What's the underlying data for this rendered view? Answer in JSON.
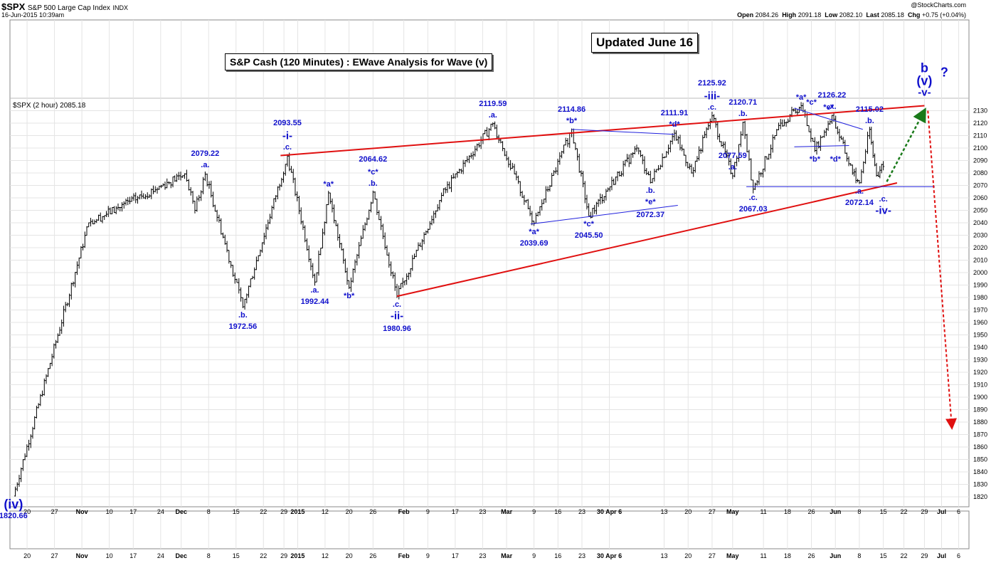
{
  "header": {
    "symbol": "$SPX",
    "name": "S&P 500 Large Cap Index",
    "exchange": "INDX",
    "datetime": "16-Jun-2015 10:39am",
    "brand": "@StockCharts.com",
    "open_label": "Open",
    "open": "2084.26",
    "high_label": "High",
    "high": "2091.18",
    "low_label": "Low",
    "low": "2082.10",
    "last_label": "Last",
    "last": "2085.18",
    "chg_label": "Chg",
    "chg": "+0.75 (+0.04%)"
  },
  "legend_text": "$SPX (2 hour) 2085.18",
  "title_box": "S&P Cash (120 Minutes) : EWave Analysis for Wave (v)",
  "updated_box": "Updated June 16",
  "colors": {
    "wave_label": "#1010cc",
    "channel": "#e01010",
    "blue_line": "#2020dd",
    "projection_up": "#1a7a1a",
    "projection_down": "#e01010",
    "grid": "#e4e4e4",
    "bars": "#000000"
  },
  "chart_data": {
    "type": "ohlc",
    "title": "S&P Cash (120 Minutes) : EWave Analysis for Wave (v)",
    "ylim": [
      1812,
      2140
    ],
    "y_ticks": [
      1820,
      1830,
      1840,
      1850,
      1860,
      1870,
      1880,
      1890,
      1900,
      1910,
      1920,
      1930,
      1940,
      1950,
      1960,
      1970,
      1980,
      1990,
      2000,
      2010,
      2020,
      2030,
      2040,
      2050,
      2060,
      2070,
      2080,
      2090,
      2100,
      2110,
      2120,
      2130
    ],
    "x_domain": [
      0,
      265
    ],
    "x_ticks": [
      {
        "t": 4,
        "label": "20"
      },
      {
        "t": 12,
        "label": "27"
      },
      {
        "t": 20,
        "label": "Nov"
      },
      {
        "t": 28,
        "label": "10"
      },
      {
        "t": 35,
        "label": "17"
      },
      {
        "t": 43,
        "label": "24"
      },
      {
        "t": 49,
        "label": "Dec"
      },
      {
        "t": 57,
        "label": "8"
      },
      {
        "t": 65,
        "label": "15"
      },
      {
        "t": 73,
        "label": "22"
      },
      {
        "t": 79,
        "label": "29"
      },
      {
        "t": 83,
        "label": "2015"
      },
      {
        "t": 91,
        "label": "12"
      },
      {
        "t": 98,
        "label": "20"
      },
      {
        "t": 105,
        "label": "26"
      },
      {
        "t": 114,
        "label": "Feb"
      },
      {
        "t": 121,
        "label": "9"
      },
      {
        "t": 129,
        "label": "17"
      },
      {
        "t": 137,
        "label": "23"
      },
      {
        "t": 144,
        "label": "Mar"
      },
      {
        "t": 152,
        "label": "9"
      },
      {
        "t": 159,
        "label": "16"
      },
      {
        "t": 166,
        "label": "23"
      },
      {
        "t": 174,
        "label": "30 Apr 6"
      },
      {
        "t": 190,
        "label": "13"
      },
      {
        "t": 197,
        "label": "20"
      },
      {
        "t": 204,
        "label": "27"
      },
      {
        "t": 210,
        "label": "May"
      },
      {
        "t": 219,
        "label": "11"
      },
      {
        "t": 226,
        "label": "18"
      },
      {
        "t": 233,
        "label": "26"
      },
      {
        "t": 240,
        "label": "Jun"
      },
      {
        "t": 247,
        "label": "8"
      },
      {
        "t": 254,
        "label": "15"
      },
      {
        "t": 260,
        "label": "22"
      },
      {
        "t": 266,
        "label": "29"
      },
      {
        "t": 271,
        "label": "Jul"
      },
      {
        "t": 276,
        "label": "6"
      }
    ],
    "pivots": [
      {
        "t": 0,
        "price": 1820.66
      },
      {
        "t": 22,
        "price": 2040
      },
      {
        "t": 50,
        "price": 2079.22
      },
      {
        "t": 53,
        "price": 2050
      },
      {
        "t": 56,
        "price": 2079
      },
      {
        "t": 67,
        "price": 1972.56
      },
      {
        "t": 80,
        "price": 2093.55
      },
      {
        "t": 88,
        "price": 1992.44
      },
      {
        "t": 92,
        "price": 2064
      },
      {
        "t": 98,
        "price": 1988
      },
      {
        "t": 105,
        "price": 2064.62
      },
      {
        "t": 112,
        "price": 1980.96
      },
      {
        "t": 125,
        "price": 2062
      },
      {
        "t": 140,
        "price": 2119.59
      },
      {
        "t": 152,
        "price": 2039.69
      },
      {
        "t": 163,
        "price": 2114.86
      },
      {
        "t": 168,
        "price": 2045.5
      },
      {
        "t": 182,
        "price": 2100
      },
      {
        "t": 186,
        "price": 2072.37
      },
      {
        "t": 193,
        "price": 2111.91
      },
      {
        "t": 198,
        "price": 2080
      },
      {
        "t": 204,
        "price": 2125.92
      },
      {
        "t": 210,
        "price": 2077.59
      },
      {
        "t": 213,
        "price": 2120.71
      },
      {
        "t": 216,
        "price": 2067.03
      },
      {
        "t": 224,
        "price": 2120
      },
      {
        "t": 230,
        "price": 2134
      },
      {
        "t": 234,
        "price": 2098
      },
      {
        "t": 239,
        "price": 2126.22
      },
      {
        "t": 245,
        "price": 2080
      },
      {
        "t": 247,
        "price": 2072.14
      },
      {
        "t": 250,
        "price": 2115.02
      },
      {
        "t": 252,
        "price": 2078
      },
      {
        "t": 254,
        "price": 2085.18
      }
    ],
    "trend_lines": [
      {
        "name": "upper-channel",
        "color": "red",
        "points": [
          [
            78,
            2094
          ],
          [
            266,
            2134
          ]
        ]
      },
      {
        "name": "lower-channel",
        "color": "red",
        "points": [
          [
            112,
            1981
          ],
          [
            258,
            2072
          ]
        ]
      },
      {
        "name": "wave-iv-support",
        "color": "blue",
        "points": [
          [
            214,
            2069
          ],
          [
            269,
            2069
          ]
        ]
      },
      {
        "name": "triangle-top",
        "color": "blue",
        "points": [
          [
            163,
            2115
          ],
          [
            193,
            2111
          ]
        ]
      },
      {
        "name": "triangle-bottom",
        "color": "blue",
        "points": [
          [
            151,
            2039
          ],
          [
            194,
            2054
          ]
        ]
      },
      {
        "name": "flat-top",
        "color": "blue",
        "points": [
          [
            228,
            2132
          ],
          [
            248,
            2115
          ]
        ]
      },
      {
        "name": "flat-bottom",
        "color": "blue",
        "points": [
          [
            228,
            2101
          ],
          [
            244,
            2102
          ]
        ]
      }
    ],
    "projections": [
      {
        "name": "projected-rise",
        "color": "green",
        "points": [
          [
            255,
            2073
          ],
          [
            266,
            2130
          ]
        ]
      },
      {
        "name": "projected-decline",
        "color": "red",
        "points": [
          [
            267,
            2130
          ],
          [
            274,
            1876
          ]
        ]
      }
    ],
    "wave_labels": [
      {
        "t": 56,
        "price": 2079.22,
        "text": ".a.",
        "value": "2079.22"
      },
      {
        "t": 80,
        "price": 2093.55,
        "text": ".c.",
        "value": "2093.55",
        "extra": "-i-"
      },
      {
        "t": 67,
        "price": 1972.56,
        "text": ".b.",
        "value": "1972.56",
        "below": true
      },
      {
        "t": 88,
        "price": 1992.44,
        "text": ".a.",
        "value": "1992.44",
        "below": true
      },
      {
        "t": 92,
        "price": 2064,
        "text": "*a*"
      },
      {
        "t": 98,
        "price": 1988,
        "text": "*b*",
        "below": true
      },
      {
        "t": 105,
        "price": 2064.62,
        "text": ".b.",
        "value": "2064.62",
        "extra": "*c*"
      },
      {
        "t": 112,
        "price": 1980.96,
        "text": ".c.",
        "value": "1980.96",
        "extra": "-ii-",
        "below": true
      },
      {
        "t": 140,
        "price": 2119.59,
        "text": ".a.",
        "value": "2119.59"
      },
      {
        "t": 152,
        "price": 2039.69,
        "text": "*a*",
        "value": "2039.69",
        "below": true
      },
      {
        "t": 163,
        "price": 2114.86,
        "text": "*b*",
        "value": "2114.86"
      },
      {
        "t": 168,
        "price": 2045.5,
        "text": "*c*",
        "value": "2045.50",
        "below": true
      },
      {
        "t": 193,
        "price": 2111.91,
        "text": "*d*",
        "value": "2111.91"
      },
      {
        "t": 186,
        "price": 2072.37,
        "text": ".b.",
        "value": "2072.37",
        "extra": "*e*",
        "below": true
      },
      {
        "t": 204,
        "price": 2125.92,
        "text": ".c.",
        "value": "2125.92",
        "extra": "-iii-"
      },
      {
        "t": 210,
        "price": 2077.59,
        "text": ".a.",
        "value": "2077.59"
      },
      {
        "t": 213,
        "price": 2120.71,
        "text": ".b.",
        "value": "2120.71"
      },
      {
        "t": 216,
        "price": 2067.03,
        "text": ".c.",
        "value": "2067.03",
        "below": true
      },
      {
        "t": 230,
        "price": 2134,
        "text": "*a*"
      },
      {
        "t": 234,
        "price": 2098,
        "text": "*b*",
        "below": true
      },
      {
        "t": 233,
        "price": 2130,
        "text": "*c*"
      },
      {
        "t": 239,
        "price": 2126.22,
        "text": ".x.",
        "value": "2126.22"
      },
      {
        "t": 238,
        "price": 2126,
        "text": "*e*"
      },
      {
        "t": 240,
        "price": 2098,
        "text": "*d*",
        "below": true
      },
      {
        "t": 247,
        "price": 2072.14,
        "text": ".a.",
        "value": "2072.14",
        "below": true
      },
      {
        "t": 250,
        "price": 2115.02,
        "text": ".b.",
        "value": "2115.02"
      },
      {
        "t": 254,
        "price": 2066,
        "text": ".c.",
        "extra": "-iv-",
        "below": true
      },
      {
        "t": 266,
        "price": 2138,
        "text": "-v-",
        "extra": "(v)",
        "extra2": "b",
        "question": "?"
      },
      {
        "t": 0,
        "price": 1820.66,
        "text": "(iv)",
        "value": "1820.66",
        "below": true
      }
    ]
  }
}
